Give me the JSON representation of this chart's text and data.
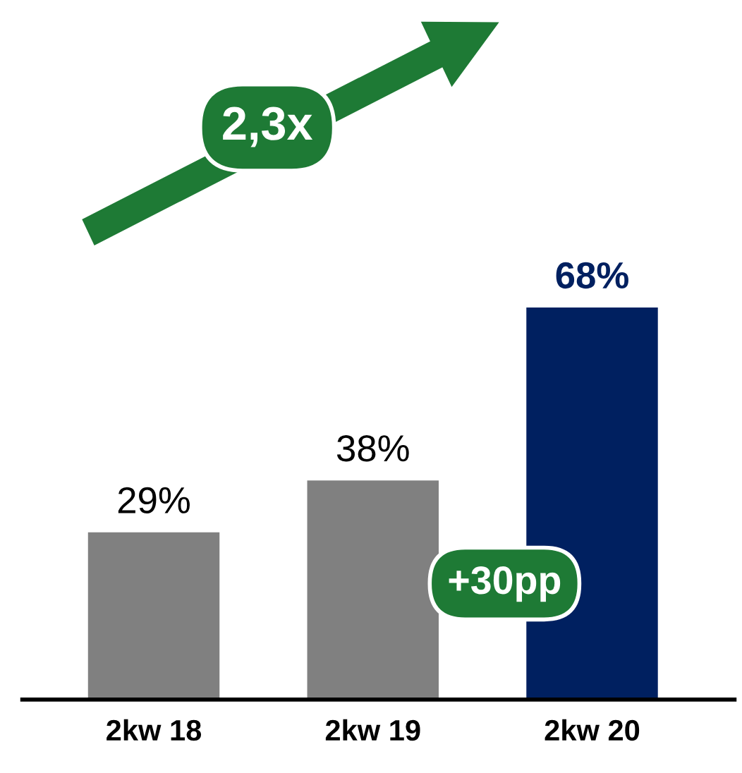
{
  "chart_data": {
    "type": "bar",
    "categories": [
      "2kw 18",
      "2kw 19",
      "2kw 20"
    ],
    "values": [
      29,
      38,
      68
    ],
    "colors": [
      "#808080",
      "#808080",
      "#002060"
    ],
    "value_labels": [
      "29%",
      "38%",
      "68%"
    ],
    "tick_labels": "x",
    "grid": false,
    "annotations": [
      "2,3x",
      "+30pp"
    ]
  }
}
